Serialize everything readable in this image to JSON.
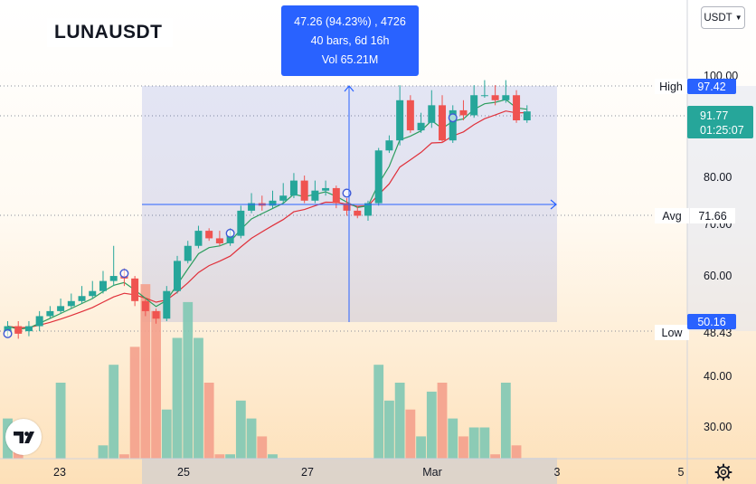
{
  "chart": {
    "symbol": "LUNAUSDT",
    "currency": "USDT",
    "measure": {
      "line1": "47.26 (94.23%) , 4726",
      "line2": "40 bars, 6d 16h",
      "line3": "Vol 65.21M"
    },
    "price_axis": {
      "ticks": [
        "100.00",
        "80.00",
        "60.00",
        "40.00",
        "30.00"
      ],
      "tick_70_partial": "70.00",
      "tick_low_partial": "48.43"
    },
    "markers": {
      "high_label": "High",
      "high_value": "97.42",
      "current_value": "91.77",
      "countdown": "01:25:07",
      "avg_label": "Avg",
      "avg_value": "71.66",
      "low_label": "Low",
      "low_value": "50.16"
    },
    "time_axis": [
      "23",
      "25",
      "27",
      "Mar",
      "3",
      "5"
    ]
  },
  "colors": {
    "up": "#26a69a",
    "down": "#ef5350",
    "accent": "#2962ff",
    "volume_up": "#80c8b4",
    "volume_down": "#f4a08c"
  },
  "icons": {
    "logo": "tradingview-logo-icon",
    "settings": "gear-icon",
    "dropdown": "chevron-down-icon"
  }
}
